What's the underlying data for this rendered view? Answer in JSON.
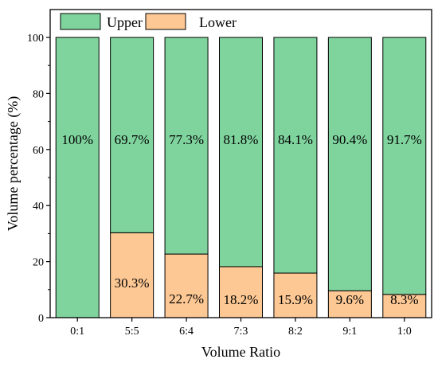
{
  "chart_data": {
    "type": "bar",
    "stacked": true,
    "categories": [
      "0:1",
      "5:5",
      "6:4",
      "7:3",
      "8:2",
      "9:1",
      "1:0"
    ],
    "series": [
      {
        "name": "Upper",
        "color": "#7fd49e",
        "values": [
          100,
          69.7,
          77.3,
          81.8,
          84.1,
          90.4,
          91.7
        ],
        "labels": [
          "100%",
          "69.7%",
          "77.3%",
          "81.8%",
          "84.1%",
          "90.4%",
          "91.7%"
        ]
      },
      {
        "name": "Lower",
        "color": "#fdc894",
        "values": [
          0,
          30.3,
          22.7,
          18.2,
          15.9,
          9.6,
          8.3
        ],
        "labels": [
          "",
          "30.3%",
          "22.7%",
          "18.2%",
          "15.9%",
          "9.6%",
          "8.3%"
        ]
      }
    ],
    "xlabel": "Volume Ratio",
    "ylabel": "Volume percentage (%)",
    "ylim": [
      0,
      100
    ],
    "yticks": [
      0,
      20,
      40,
      60,
      80,
      100
    ],
    "legend": "top-left",
    "grid": false
  }
}
